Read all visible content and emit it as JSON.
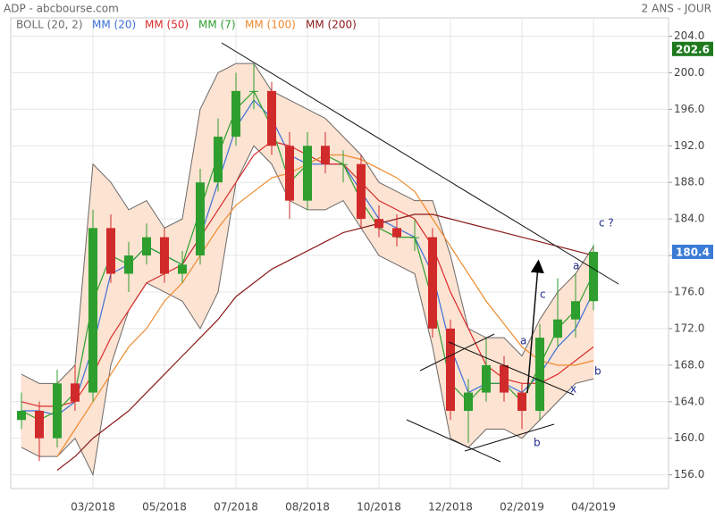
{
  "chart_data": {
    "type": "candlestick",
    "source": "ADP - abcbourse.com",
    "period": "2 ANS - JOUR",
    "categories": [
      null,
      null,
      null,
      null,
      "03/2018",
      null,
      null,
      null,
      "05/2018",
      null,
      null,
      null,
      "07/2018",
      null,
      null,
      null,
      "08/2018",
      null,
      null,
      null,
      "10/2018",
      null,
      null,
      null,
      "12/2018",
      null,
      null,
      null,
      "02/2019",
      null,
      null,
      null,
      "04/2019"
    ],
    "open": [
      162,
      163,
      160,
      166,
      165,
      183,
      178,
      180,
      182,
      178,
      180,
      188,
      193,
      198,
      198,
      192,
      186,
      192,
      190,
      190,
      184,
      183,
      182,
      182,
      172,
      163,
      165,
      168,
      165,
      163,
      171,
      173,
      175
    ],
    "high": [
      165,
      164,
      167.5,
      168,
      185,
      184.5,
      181.5,
      183.5,
      183,
      180.5,
      189.5,
      195,
      200,
      201,
      199,
      193.5,
      193.5,
      193.5,
      191.5,
      191,
      185.5,
      184.5,
      184,
      183,
      173,
      166.5,
      171,
      169,
      166,
      172.5,
      177.5,
      178,
      181.2
    ],
    "low": [
      161,
      157.5,
      159,
      163,
      164,
      177,
      176,
      179,
      177,
      177,
      179,
      187,
      192,
      196,
      191,
      184,
      185,
      189,
      188,
      183,
      182,
      181,
      180.5,
      171,
      162,
      159.5,
      164,
      164,
      161,
      162,
      170,
      171,
      174
    ],
    "close": [
      163,
      160,
      166,
      164,
      183,
      178,
      180,
      182,
      178,
      179,
      188,
      193,
      198,
      198,
      192,
      186,
      192,
      190,
      190,
      184,
      183,
      182,
      182,
      172,
      163,
      165,
      168,
      165,
      163,
      171,
      173,
      175,
      180.4
    ],
    "up_color": "#2e9e2e",
    "down_color": "#d12a2a",
    "bollinger": {
      "name": "BOLL (20, 2)",
      "color": "#6b6b6b",
      "fill": "#fde3d2",
      "upper": [
        167,
        166,
        166,
        168,
        190,
        188,
        185,
        186,
        183,
        184,
        196,
        200,
        201,
        201,
        198,
        197,
        196,
        195,
        193,
        191,
        188,
        187,
        186,
        186,
        180,
        172,
        171,
        171,
        169,
        173,
        176,
        178,
        181
      ],
      "lower": [
        159,
        158,
        158,
        160,
        156,
        168,
        174,
        177,
        176,
        175,
        172,
        176,
        188,
        192,
        190,
        186,
        185,
        185,
        186,
        183,
        180,
        179,
        178,
        170,
        160,
        159,
        161,
        161,
        160,
        162,
        164,
        166,
        166.5
      ]
    },
    "series": [
      {
        "name": "MM (20)",
        "color": "#3b6fd8",
        "values": [
          163,
          163,
          162.5,
          164,
          170,
          178,
          179,
          181,
          180,
          179,
          182,
          188,
          194,
          197,
          195,
          191,
          190,
          190,
          190,
          187,
          184,
          183,
          182,
          178,
          170,
          165,
          166,
          166,
          165,
          167,
          170,
          172,
          176
        ]
      },
      {
        "name": "MM (50)",
        "color": "#d92b2b",
        "values": [
          164,
          163.5,
          163.5,
          164,
          167,
          171,
          174,
          177,
          178,
          179,
          182,
          185,
          188,
          191,
          192.5,
          192,
          191,
          190,
          190,
          188,
          186,
          185,
          184,
          181,
          176,
          172,
          168,
          166.5,
          166,
          166,
          167,
          168.5,
          170
        ]
      },
      {
        "name": "MM (7)",
        "color": "#2e9e2e",
        "values": [
          163,
          162,
          163,
          165,
          175,
          180,
          179,
          181,
          180,
          179,
          185,
          191,
          196,
          198,
          194,
          188,
          190,
          191,
          190,
          186,
          183,
          182,
          182,
          175,
          166,
          164,
          166,
          166,
          164,
          168,
          172,
          174,
          178
        ]
      },
      {
        "name": "MM (100)",
        "color": "#ee8a2e",
        "values": [
          null,
          null,
          158,
          161,
          164,
          167,
          170,
          172,
          175,
          177,
          180,
          183,
          185.5,
          187,
          188.5,
          189,
          190,
          191,
          191,
          190.5,
          189.5,
          188.5,
          187,
          184,
          181,
          178,
          175,
          172.5,
          170,
          168.5,
          168,
          168,
          168.5
        ]
      },
      {
        "name": "MM (200)",
        "color": "#8b1a1a",
        "values": [
          null,
          null,
          156.5,
          158,
          160,
          161.5,
          163,
          165,
          167,
          169,
          171,
          173,
          175.5,
          177,
          178.5,
          179.5,
          180.5,
          181.5,
          182.5,
          183,
          183.5,
          184,
          184.5,
          184.5,
          184,
          183.5,
          183,
          182.5,
          182,
          181.5,
          181,
          180.5,
          180
        ]
      }
    ],
    "ylim": [
      154.5,
      206
    ],
    "yticks": [
      {
        "value": 156,
        "label": "156.0"
      },
      {
        "value": 160,
        "label": "160.0"
      },
      {
        "value": 164,
        "label": "164.0"
      },
      {
        "value": 168,
        "label": "168.0"
      },
      {
        "value": 172,
        "label": "172.0"
      },
      {
        "value": 176,
        "label": "176.0"
      },
      {
        "value": 180,
        "label": "180.0"
      },
      {
        "value": 184,
        "label": "184.0"
      },
      {
        "value": 188,
        "label": "188.0"
      },
      {
        "value": 192,
        "label": "192.0"
      },
      {
        "value": 196,
        "label": "196.0"
      },
      {
        "value": 200,
        "label": "200.0"
      },
      {
        "value": 204,
        "label": "204.0"
      }
    ],
    "grid": true,
    "markers": [
      {
        "value": 202.6,
        "color": "#1f7a1f"
      },
      {
        "value": 180.4,
        "color": "#3a7bd5"
      }
    ],
    "annotations": [
      "a",
      "c ?",
      "c",
      "a",
      "b",
      "x",
      "b"
    ]
  }
}
